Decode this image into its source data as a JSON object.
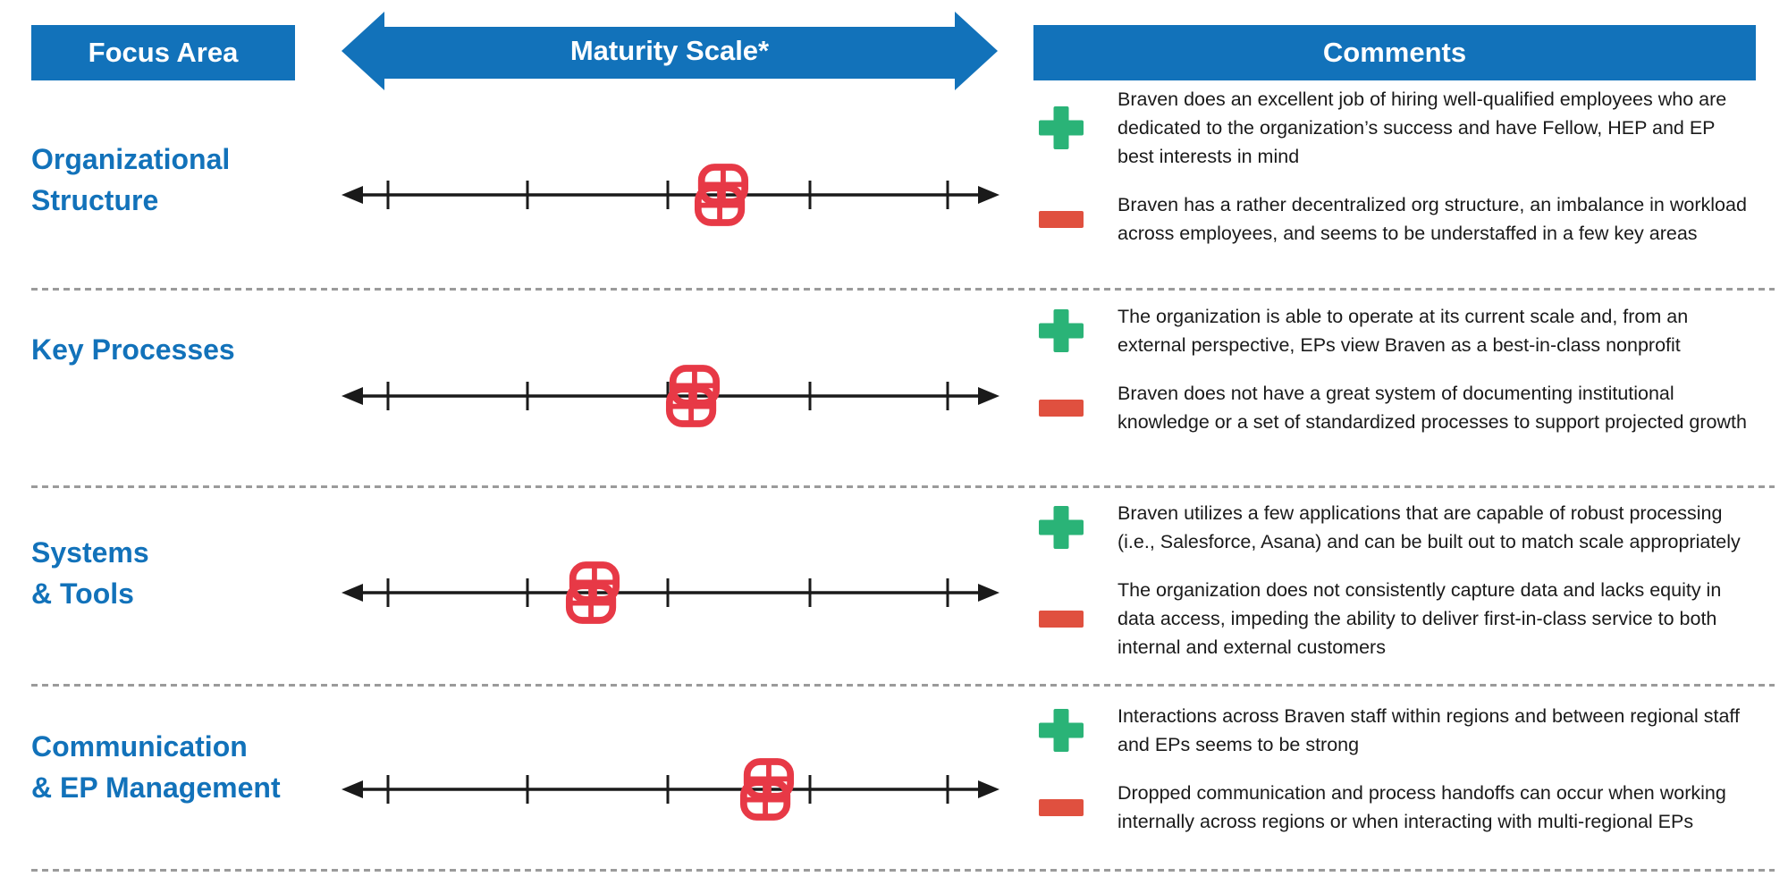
{
  "header": {
    "focus_area_label": "Focus Area",
    "maturity_scale_label": "Maturity Scale*",
    "comments_label": "Comments"
  },
  "colors": {
    "header_blue": "#1272BA",
    "label_blue": "#1272BA",
    "plus_green": "#2AB377",
    "minus_red": "#E0503F",
    "marker_red": "#E73946",
    "line_black": "#1A1A1A",
    "divider_gray": "#9B9B9B"
  },
  "scale": {
    "tick_count": 5,
    "marker_icon": "overlapping-rounded-cross-badges"
  },
  "rows": [
    {
      "focus_lines": [
        "Organizational",
        "Structure"
      ],
      "marker_pct": 57.7,
      "plus_text": "Braven does an excellent job of hiring well-qualified employees who are dedicated to the organization’s success and have Fellow, HEP and EP best interests in mind",
      "minus_text": "Braven has a rather decentralized org structure, an imbalance in workload across employees, and seems to be understaffed in a few key areas"
    },
    {
      "focus_lines": [
        "Key Processes"
      ],
      "marker_pct": 53.4,
      "plus_text": "The organization is able to operate at its current scale and, from an external perspective, EPs view Braven as a best-in-class nonprofit",
      "minus_text": "Braven does not have a great system of documenting institutional knowledge or a set of standardized processes to support projected growth"
    },
    {
      "focus_lines": [
        "Systems",
        "& Tools"
      ],
      "marker_pct": 38.2,
      "plus_text": "Braven utilizes a few applications that are capable of robust processing (i.e., Salesforce, Asana) and can be built out to match scale appropriately",
      "minus_text": "The organization does not consistently capture data and lacks equity in data access, impeding the ability to deliver first-in-class service to both internal and external customers"
    },
    {
      "focus_lines": [
        "Communication",
        "& EP Management"
      ],
      "marker_pct": 64.6,
      "plus_text": "Interactions across Braven staff within regions and between regional staff and EPs seems to be strong",
      "minus_text": "Dropped communication and process handoffs can occur when working internally across regions or when interacting with multi-regional EPs"
    }
  ]
}
